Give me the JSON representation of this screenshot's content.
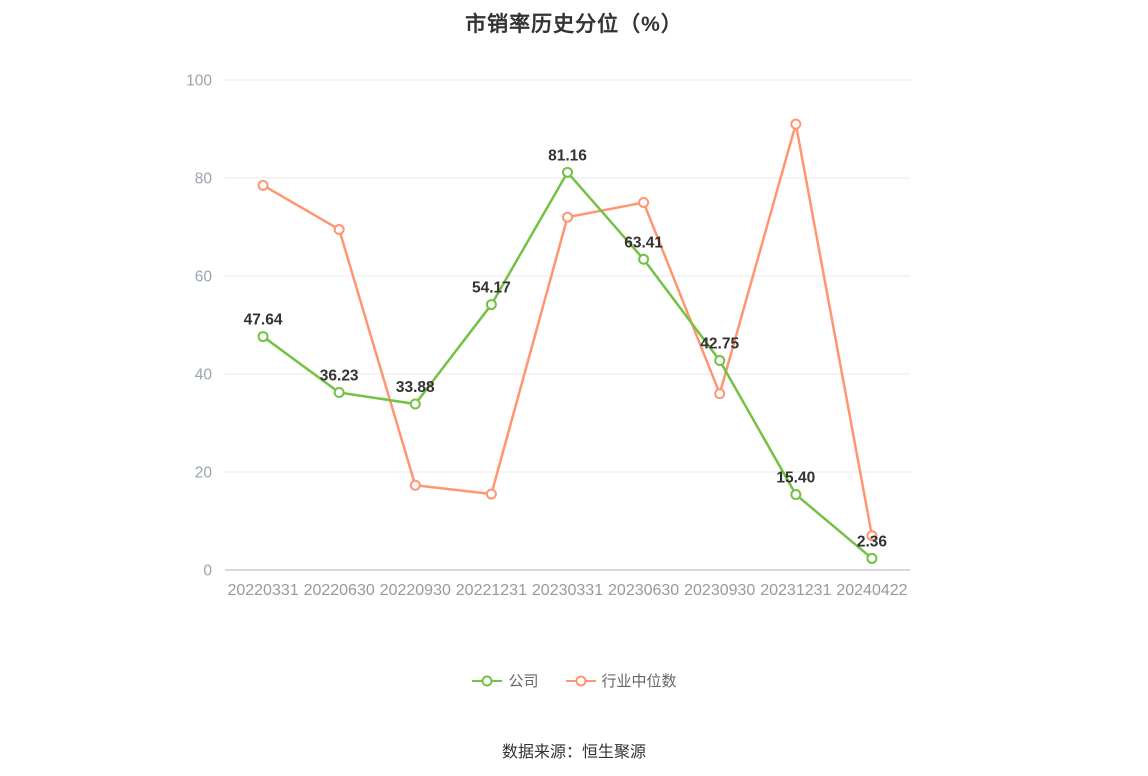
{
  "source": "数据来源：恒生聚源",
  "legend": [
    {
      "label": "公司",
      "color": "#74c144"
    },
    {
      "label": "行业中位数",
      "color": "#ff9670"
    }
  ],
  "chart_data": {
    "type": "line",
    "title": "市销率历史分位（%）",
    "categories": [
      "20220331",
      "20220630",
      "20220930",
      "20221231",
      "20230331",
      "20230630",
      "20230930",
      "20231231",
      "20240422"
    ],
    "series": [
      {
        "name": "公司",
        "color": "#74c144",
        "values": [
          47.64,
          36.23,
          33.88,
          54.17,
          81.16,
          63.41,
          42.75,
          15.4,
          2.36
        ],
        "labels": [
          "47.64",
          "36.23",
          "33.88",
          "54.17",
          "81.16",
          "63.41",
          "42.75",
          "15.40",
          "2.36"
        ]
      },
      {
        "name": "行业中位数",
        "color": "#ff9670",
        "values": [
          78.5,
          69.5,
          17.3,
          15.5,
          72,
          75,
          36,
          91,
          7
        ],
        "labels": null
      }
    ],
    "ylim": [
      0,
      100
    ],
    "yticks": [
      0,
      20,
      40,
      60,
      80,
      100
    ],
    "grid": true,
    "legend_position": "bottom",
    "xlabel": "",
    "ylabel": ""
  }
}
